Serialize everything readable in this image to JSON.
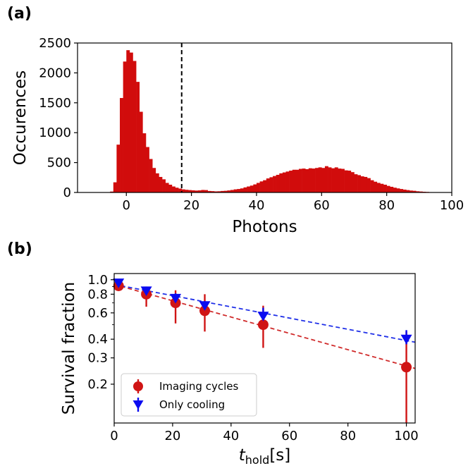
{
  "colors": {
    "histogram": "#d10c0c",
    "imaging": "#d01515",
    "imaging_fit": "#d02a2a",
    "cooling": "#0a0af0",
    "cooling_fit": "#2030e8",
    "threshold": "#000000"
  },
  "chart_data": [
    {
      "panel": "(a)",
      "type": "bar",
      "xlabel": "Photons",
      "ylabel": "Occurences",
      "xlim": [
        -15,
        100
      ],
      "ylim": [
        0,
        2500
      ],
      "xticks": [
        "0",
        "20",
        "40",
        "60",
        "80",
        "100"
      ],
      "yticks": [
        "0",
        "500",
        "1000",
        "1500",
        "2000",
        "2500"
      ],
      "bin_width": 1,
      "bin_start": -5,
      "values": [
        15,
        170,
        800,
        1580,
        2190,
        2380,
        2340,
        2200,
        1850,
        1350,
        990,
        760,
        560,
        410,
        320,
        260,
        220,
        160,
        130,
        100,
        80,
        65,
        52,
        45,
        40,
        36,
        32,
        35,
        42,
        40,
        25,
        22,
        18,
        20,
        25,
        28,
        34,
        42,
        52,
        58,
        68,
        85,
        100,
        115,
        135,
        160,
        185,
        205,
        235,
        255,
        275,
        295,
        320,
        335,
        350,
        365,
        380,
        380,
        395,
        400,
        390,
        405,
        400,
        410,
        420,
        410,
        440,
        420,
        405,
        420,
        400,
        395,
        370,
        365,
        340,
        305,
        290,
        270,
        260,
        240,
        205,
        180,
        160,
        145,
        130,
        110,
        95,
        80,
        68,
        58,
        48,
        40,
        32,
        28,
        20,
        16,
        12,
        9,
        6,
        4,
        3,
        2,
        1,
        1,
        1
      ],
      "threshold": 17
    },
    {
      "panel": "(b)",
      "type": "scatter",
      "xlabel_main": "t",
      "xlabel_sub": "hold",
      "xlabel_unit": "[s]",
      "ylabel": "Survival fraction",
      "xlim": [
        0,
        103
      ],
      "ylim": [
        0.11,
        1.1
      ],
      "yscale": "log",
      "xticks": [
        "0",
        "20",
        "40",
        "60",
        "80",
        "100"
      ],
      "yticks": [
        "0.2",
        "0.3",
        "0.4",
        "0.6",
        "0.8",
        "1.0"
      ],
      "legend_position": "lower left",
      "series": [
        {
          "name": "Imaging cycles",
          "marker": "circle",
          "x": [
            1.5,
            11,
            21,
            31,
            51,
            100
          ],
          "y": [
            0.91,
            0.8,
            0.7,
            0.62,
            0.5,
            0.26
          ],
          "err_low": [
            0.06,
            0.14,
            0.19,
            0.17,
            0.15,
            0.16
          ],
          "err_high": [
            0.06,
            0.1,
            0.15,
            0.18,
            0.17,
            0.19
          ],
          "fit": {
            "x": [
              0,
              103
            ],
            "y": [
              0.93,
              0.255
            ]
          }
        },
        {
          "name": "Only cooling",
          "marker": "triangle-down",
          "x": [
            1.5,
            11,
            21,
            31,
            51,
            100
          ],
          "y": [
            0.95,
            0.84,
            0.75,
            0.67,
            0.57,
            0.4
          ],
          "err_low": [
            0.03,
            0.06,
            0.06,
            0.05,
            0.05,
            0.03
          ],
          "err_high": [
            0.03,
            0.06,
            0.06,
            0.05,
            0.08,
            0.06
          ],
          "fit": {
            "x": [
              0,
              103
            ],
            "y": [
              0.93,
              0.382
            ]
          }
        }
      ]
    }
  ]
}
